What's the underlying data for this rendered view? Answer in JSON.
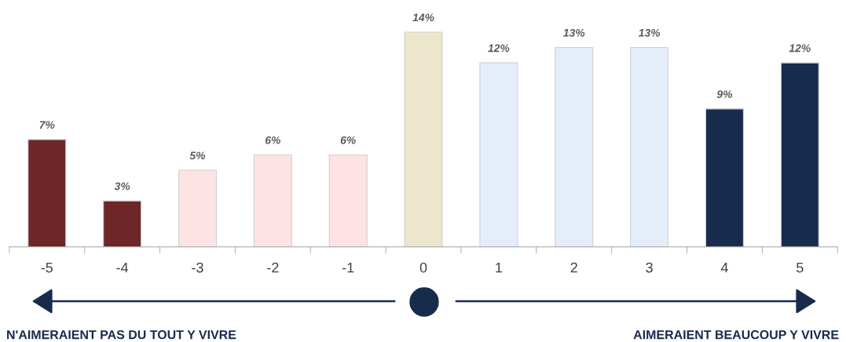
{
  "chart_data": {
    "type": "bar",
    "categories": [
      "-5",
      "-4",
      "-3",
      "-2",
      "-1",
      "0",
      "1",
      "2",
      "3",
      "4",
      "5"
    ],
    "values": [
      7,
      3,
      5,
      6,
      6,
      14,
      12,
      13,
      13,
      9,
      12
    ],
    "value_labels": [
      "7%",
      "3%",
      "5%",
      "6%",
      "6%",
      "14%",
      "12%",
      "13%",
      "13%",
      "9%",
      "12%"
    ],
    "colors": [
      "#6e2626",
      "#6e2626",
      "#fde3e3",
      "#fde3e3",
      "#fde3e3",
      "#ece6cc",
      "#e4eefb",
      "#e4eefb",
      "#e4eefb",
      "#172b4d",
      "#172b4d"
    ],
    "annotations": [
      "N'AIMERAIENT PAS DU TOUT Y VIVRE",
      "AIMERAIENT BEAUCOUP Y VIVRE"
    ],
    "grid": false,
    "legend": false
  }
}
